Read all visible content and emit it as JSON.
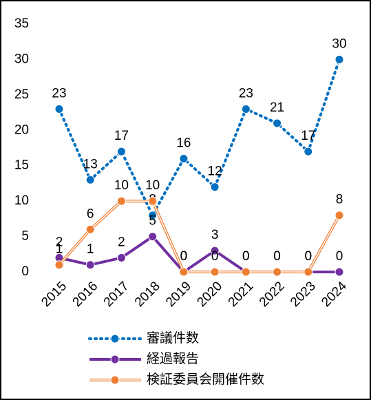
{
  "chart_data": {
    "type": "line",
    "categories": [
      "2015",
      "2016",
      "2017",
      "2018",
      "2019",
      "2020",
      "2021",
      "2022",
      "2023",
      "2024"
    ],
    "series": [
      {
        "name": "審議件数",
        "color": "#0070c0",
        "style": "dotted",
        "values": [
          23,
          13,
          17,
          8,
          16,
          12,
          23,
          21,
          17,
          30
        ]
      },
      {
        "name": "経過報告",
        "color": "#7030a0",
        "style": "solid",
        "values": [
          2,
          1,
          2,
          5,
          0,
          3,
          0,
          0,
          0,
          0
        ]
      },
      {
        "name": "検証委員会開催件数",
        "color": "#ed7d31",
        "style": "double",
        "values": [
          1,
          6,
          10,
          10,
          0,
          0,
          0,
          0,
          0,
          8
        ]
      }
    ],
    "ylim": [
      0,
      35
    ],
    "yticks": [
      0,
      5,
      10,
      15,
      20,
      25,
      30,
      35
    ],
    "grid": false,
    "legend": "bottom"
  }
}
